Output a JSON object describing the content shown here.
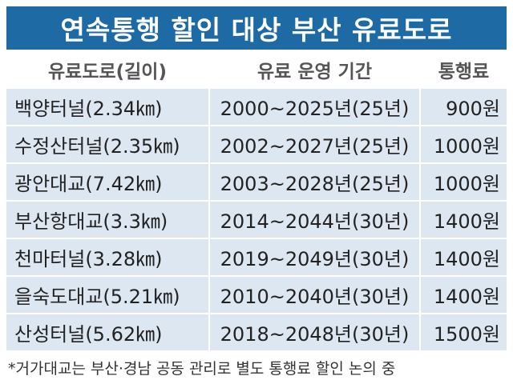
{
  "title": "연속통행 할인 대상 부산 유료도로",
  "table": {
    "header": [
      "유료도로(길이)",
      "유료 운영 기간",
      "통행료"
    ],
    "rows": [
      [
        "백양터널(2.34㎞)",
        "2000~2025년(25년)",
        "900원"
      ],
      [
        "수정산터널(2.35㎞)",
        "2002~2027년(25년)",
        "1000원"
      ],
      [
        "광안대교(7.42㎞)",
        "2003~2028년(25년)",
        "1000원"
      ],
      [
        "부산항대교(3.3㎞)",
        "2014~2044년(30년)",
        "1400원"
      ],
      [
        "천마터널(3.28㎞)",
        "2019~2049년(30년)",
        "1400원"
      ],
      [
        "을숙도대교(5.21㎞)",
        "2010~2040년(30년)",
        "1400원"
      ],
      [
        "산성터널(5.62㎞)",
        "2018~2048년(30년)",
        "1500원"
      ]
    ]
  },
  "footnote": "*거가대교는 부산·경남 공동 관리로 별도 통행료 할인 논의 중"
}
